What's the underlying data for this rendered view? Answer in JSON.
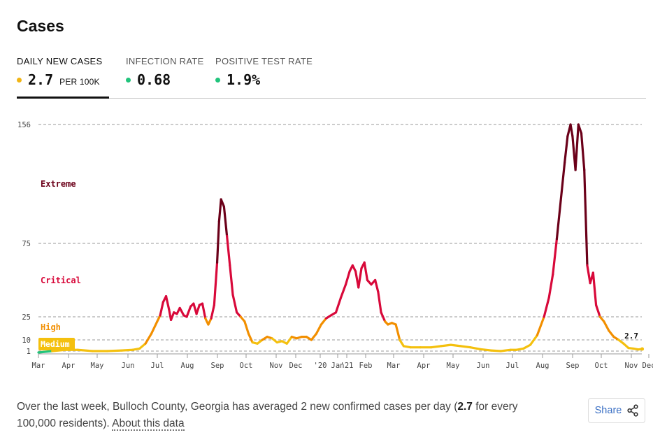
{
  "header": {
    "title": "Cases"
  },
  "tabs": [
    {
      "label": "DAILY NEW CASES",
      "value": "2.7",
      "unit": "PER 100K",
      "dot_color": "#f1b515",
      "active": true
    },
    {
      "label": "INFECTION RATE",
      "value": "0.68",
      "unit": "",
      "dot_color": "#21c47c",
      "active": false
    },
    {
      "label": "POSITIVE TEST RATE",
      "value": "1.9%",
      "unit": "",
      "dot_color": "#21c47c",
      "active": false
    }
  ],
  "chart_data": {
    "type": "line",
    "ylim": [
      0,
      156
    ],
    "y_ticks": [
      1,
      10,
      25,
      75,
      156
    ],
    "grid": "horizontal dashed at tick values",
    "x_ticks": [
      "Mar",
      "Apr",
      "May",
      "Jun",
      "Jul",
      "Aug",
      "Sep",
      "Oct",
      "Nov",
      "Dec",
      "'20",
      "Jan",
      "'21",
      "Feb",
      "Mar",
      "Apr",
      "May",
      "Jun",
      "Jul",
      "Aug",
      "Sep",
      "Oct",
      "Nov",
      "Dec"
    ],
    "zones": [
      {
        "label": "Extreme",
        "from": 75,
        "to": 156,
        "color": "#6b0019"
      },
      {
        "label": "Critical",
        "from": 25,
        "to": 75,
        "color": "#d8093a"
      },
      {
        "label": "High",
        "from": 10,
        "to": 25,
        "color": "#f28f00"
      },
      {
        "label": "Medium",
        "from": 1,
        "to": 10,
        "color": "#f4c00e"
      },
      {
        "label": "",
        "from": 0,
        "to": 1,
        "color": "#21c47c"
      }
    ],
    "last_label": "2.7",
    "series": [
      {
        "name": "",
        "points": [
          [
            "2020-03-01",
            0.5
          ],
          [
            "2020-03-15",
            1
          ],
          [
            "2020-03-28",
            2
          ],
          [
            "2020-04-10",
            2
          ],
          [
            "2020-04-25",
            1
          ],
          [
            "2020-05-10",
            1
          ],
          [
            "2020-05-25",
            1.5
          ],
          [
            "2020-06-05",
            2
          ],
          [
            "2020-06-12",
            3
          ],
          [
            "2020-06-18",
            7
          ],
          [
            "2020-06-24",
            14
          ],
          [
            "2020-06-30",
            22
          ],
          [
            "2020-07-03",
            26
          ],
          [
            "2020-07-06",
            35
          ],
          [
            "2020-07-09",
            39
          ],
          [
            "2020-07-12",
            30
          ],
          [
            "2020-07-14",
            23
          ],
          [
            "2020-07-17",
            28
          ],
          [
            "2020-07-20",
            27
          ],
          [
            "2020-07-23",
            31
          ],
          [
            "2020-07-27",
            26
          ],
          [
            "2020-07-30",
            25
          ],
          [
            "2020-08-03",
            32
          ],
          [
            "2020-08-06",
            34
          ],
          [
            "2020-08-09",
            27
          ],
          [
            "2020-08-12",
            33
          ],
          [
            "2020-08-15",
            34
          ],
          [
            "2020-08-18",
            24
          ],
          [
            "2020-08-21",
            20
          ],
          [
            "2020-08-24",
            24
          ],
          [
            "2020-08-27",
            33
          ],
          [
            "2020-08-30",
            62
          ],
          [
            "2020-09-01",
            90
          ],
          [
            "2020-09-03",
            105
          ],
          [
            "2020-09-06",
            100
          ],
          [
            "2020-09-09",
            80
          ],
          [
            "2020-09-12",
            60
          ],
          [
            "2020-09-15",
            40
          ],
          [
            "2020-09-19",
            28
          ],
          [
            "2020-09-23",
            25
          ],
          [
            "2020-09-27",
            22
          ],
          [
            "2020-10-01",
            14
          ],
          [
            "2020-10-05",
            8
          ],
          [
            "2020-10-10",
            7
          ],
          [
            "2020-10-15",
            10
          ],
          [
            "2020-10-20",
            12
          ],
          [
            "2020-10-25",
            11
          ],
          [
            "2020-10-30",
            8
          ],
          [
            "2020-11-04",
            9
          ],
          [
            "2020-11-09",
            7
          ],
          [
            "2020-11-14",
            12
          ],
          [
            "2020-11-19",
            11
          ],
          [
            "2020-11-24",
            12
          ],
          [
            "2020-11-29",
            12
          ],
          [
            "2020-12-04",
            10
          ],
          [
            "2020-12-09",
            14
          ],
          [
            "2020-12-14",
            20
          ],
          [
            "2020-12-19",
            24
          ],
          [
            "2020-12-24",
            26
          ],
          [
            "2020-12-29",
            28
          ],
          [
            "2021-01-03",
            38
          ],
          [
            "2021-01-08",
            47
          ],
          [
            "2021-01-12",
            56
          ],
          [
            "2021-01-15",
            60
          ],
          [
            "2021-01-18",
            56
          ],
          [
            "2021-01-21",
            45
          ],
          [
            "2021-01-24",
            58
          ],
          [
            "2021-01-27",
            62
          ],
          [
            "2021-01-30",
            50
          ],
          [
            "2021-02-03",
            47
          ],
          [
            "2021-02-07",
            50
          ],
          [
            "2021-02-10",
            42
          ],
          [
            "2021-02-13",
            28
          ],
          [
            "2021-02-17",
            22
          ],
          [
            "2021-02-20",
            20
          ],
          [
            "2021-02-24",
            21
          ],
          [
            "2021-02-28",
            20
          ],
          [
            "2021-03-04",
            10
          ],
          [
            "2021-03-08",
            5
          ],
          [
            "2021-03-15",
            4
          ],
          [
            "2021-03-25",
            4
          ],
          [
            "2021-04-05",
            4
          ],
          [
            "2021-04-15",
            5
          ],
          [
            "2021-04-25",
            6
          ],
          [
            "2021-05-05",
            5
          ],
          [
            "2021-05-15",
            4
          ],
          [
            "2021-05-25",
            2.5
          ],
          [
            "2021-06-05",
            1.5
          ],
          [
            "2021-06-15",
            1
          ],
          [
            "2021-06-25",
            2
          ],
          [
            "2021-07-01",
            2
          ],
          [
            "2021-07-08",
            3
          ],
          [
            "2021-07-15",
            6
          ],
          [
            "2021-07-22",
            13
          ],
          [
            "2021-07-29",
            25
          ],
          [
            "2021-08-03",
            38
          ],
          [
            "2021-08-07",
            54
          ],
          [
            "2021-08-11",
            78
          ],
          [
            "2021-08-15",
            104
          ],
          [
            "2021-08-19",
            130
          ],
          [
            "2021-08-22",
            148
          ],
          [
            "2021-08-25",
            156
          ],
          [
            "2021-08-27",
            148
          ],
          [
            "2021-08-30",
            125
          ],
          [
            "2021-09-02",
            156
          ],
          [
            "2021-09-05",
            150
          ],
          [
            "2021-09-08",
            125
          ],
          [
            "2021-09-11",
            60
          ],
          [
            "2021-09-14",
            48
          ],
          [
            "2021-09-17",
            55
          ],
          [
            "2021-09-20",
            33
          ],
          [
            "2021-09-24",
            25
          ],
          [
            "2021-09-28",
            22
          ],
          [
            "2021-10-03",
            16
          ],
          [
            "2021-10-08",
            12
          ],
          [
            "2021-10-13",
            10
          ],
          [
            "2021-10-18",
            7
          ],
          [
            "2021-10-23",
            3.5
          ],
          [
            "2021-10-28",
            3
          ],
          [
            "2021-11-02",
            2.3
          ],
          [
            "2021-11-06",
            2.7
          ]
        ]
      }
    ]
  },
  "footer": {
    "text_before": "Over the last week, Bulloch County, Georgia has averaged 2 new confirmed cases per day (",
    "highlight": "2.7",
    "text_after": " for every 100,000 residents). ",
    "link": "About this data"
  },
  "share": {
    "label": "Share",
    "icon": "share-icon"
  }
}
